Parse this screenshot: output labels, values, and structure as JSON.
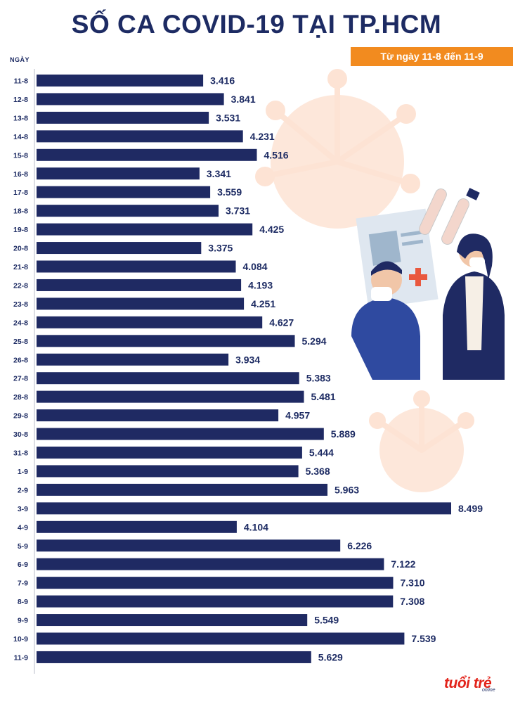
{
  "title": "SỐ CA COVID-19 TẠI TP.HCM",
  "subtitle": "Từ ngày 11-8 đến 11-9",
  "logo": {
    "text": "tuổi trẻ",
    "sub": "online"
  },
  "chart_data": {
    "type": "bar",
    "orientation": "horizontal",
    "ylabel": "NGÀY",
    "categories": [
      "11-8",
      "12-8",
      "13-8",
      "14-8",
      "15-8",
      "16-8",
      "17-8",
      "18-8",
      "19-8",
      "20-8",
      "21-8",
      "22-8",
      "23-8",
      "24-8",
      "25-8",
      "26-8",
      "27-8",
      "28-8",
      "29-8",
      "30-8",
      "31-8",
      "1-9",
      "2-9",
      "3-9",
      "4-9",
      "5-9",
      "6-9",
      "7-9",
      "8-9",
      "9-9",
      "10-9",
      "11-9"
    ],
    "values": [
      3416,
      3841,
      3531,
      4231,
      4516,
      3341,
      3559,
      3731,
      4425,
      3375,
      4084,
      4193,
      4251,
      4627,
      5294,
      3934,
      5383,
      5481,
      4957,
      5889,
      5444,
      5368,
      5963,
      8499,
      4104,
      6226,
      7122,
      7310,
      7308,
      5549,
      7539,
      5629
    ],
    "value_labels": [
      "3.416",
      "3.841",
      "3.531",
      "4.231",
      "4.516",
      "3.341",
      "3.559",
      "3.731",
      "4.425",
      "3.375",
      "4.084",
      "4.193",
      "4.251",
      "4.627",
      "5.294",
      "3.934",
      "5.383",
      "5.481",
      "4.957",
      "5.889",
      "5.444",
      "5.368",
      "5.963",
      "8.499",
      "4.104",
      "6.226",
      "7.122",
      "7.310",
      "7.308",
      "5.549",
      "7.539",
      "5.629"
    ],
    "colors": {
      "bar": "#1f2a63",
      "text": "#1d2b63",
      "accent": "#f28b1f"
    }
  }
}
